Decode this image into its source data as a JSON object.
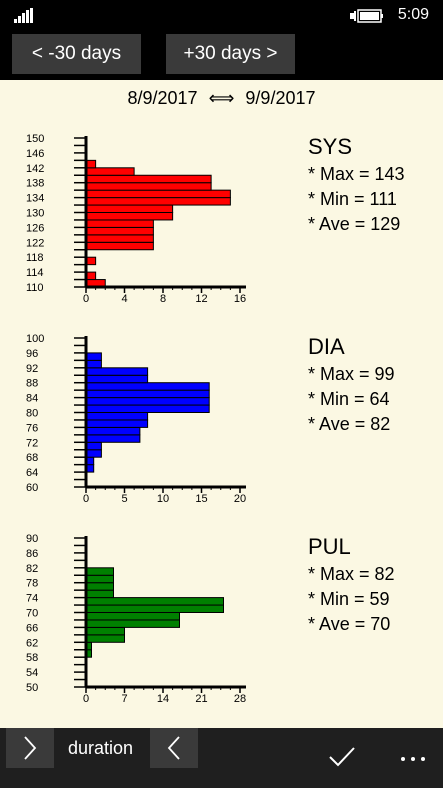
{
  "status": {
    "time": "5:09"
  },
  "nav": {
    "prev_label": "<  -30 days",
    "next_label": "+30 days  >"
  },
  "date_range": {
    "start": "8/9/2017",
    "arrow": "⟺",
    "end": "9/9/2017"
  },
  "sections": [
    {
      "key": "SYS",
      "max_label": "* Max = 143",
      "min_label": "* Min = 111",
      "ave_label": "* Ave = 129"
    },
    {
      "key": "DIA",
      "max_label": "* Max = 99",
      "min_label": "* Min = 64",
      "ave_label": "* Ave = 82"
    },
    {
      "key": "PUL",
      "max_label": "* Max = 82",
      "min_label": "* Min = 59",
      "ave_label": "* Ave = 70"
    }
  ],
  "chart_data": [
    {
      "type": "bar",
      "orientation": "horizontal",
      "color": "#ff0000",
      "y_ticks": [
        "110",
        "114",
        "118",
        "122",
        "126",
        "130",
        "134",
        "138",
        "142",
        "146",
        "150"
      ],
      "x_ticks": [
        "0",
        "4",
        "8",
        "12",
        "16"
      ],
      "xlim": [
        0,
        16
      ],
      "categories": [
        "110",
        "112",
        "114",
        "116",
        "118",
        "120",
        "122",
        "124",
        "126",
        "128",
        "130",
        "132",
        "134",
        "136",
        "138",
        "140",
        "142",
        "144",
        "146",
        "148"
      ],
      "values": [
        2,
        1,
        0,
        1,
        0,
        7,
        7,
        7,
        7,
        9,
        9,
        15,
        15,
        13,
        13,
        5,
        1,
        0,
        0,
        0
      ]
    },
    {
      "type": "bar",
      "orientation": "horizontal",
      "color": "#0000ff",
      "y_ticks": [
        "60",
        "64",
        "68",
        "72",
        "76",
        "80",
        "84",
        "88",
        "92",
        "96",
        "100"
      ],
      "x_ticks": [
        "0",
        "5",
        "10",
        "15",
        "20"
      ],
      "xlim": [
        0,
        20
      ],
      "categories": [
        "60",
        "62",
        "64",
        "66",
        "68",
        "70",
        "72",
        "74",
        "76",
        "78",
        "80",
        "82",
        "84",
        "86",
        "88",
        "90",
        "92",
        "94",
        "96",
        "98"
      ],
      "values": [
        0,
        0,
        1,
        1,
        2,
        2,
        7,
        7,
        8,
        8,
        16,
        16,
        16,
        16,
        8,
        8,
        2,
        2,
        0,
        0
      ]
    },
    {
      "type": "bar",
      "orientation": "horizontal",
      "color": "#008000",
      "y_ticks": [
        "50",
        "54",
        "58",
        "62",
        "66",
        "70",
        "74",
        "78",
        "82",
        "86",
        "90"
      ],
      "x_ticks": [
        "0",
        "7",
        "14",
        "21",
        "28"
      ],
      "xlim": [
        0,
        28
      ],
      "categories": [
        "50",
        "52",
        "54",
        "56",
        "58",
        "60",
        "62",
        "64",
        "66",
        "68",
        "70",
        "72",
        "74",
        "76",
        "78",
        "80",
        "82",
        "84",
        "86",
        "88"
      ],
      "values": [
        0,
        0,
        0,
        0,
        1,
        1,
        7,
        7,
        17,
        17,
        25,
        25,
        5,
        5,
        5,
        5,
        0,
        0,
        0,
        0
      ]
    }
  ],
  "bottom": {
    "label": "duration"
  }
}
